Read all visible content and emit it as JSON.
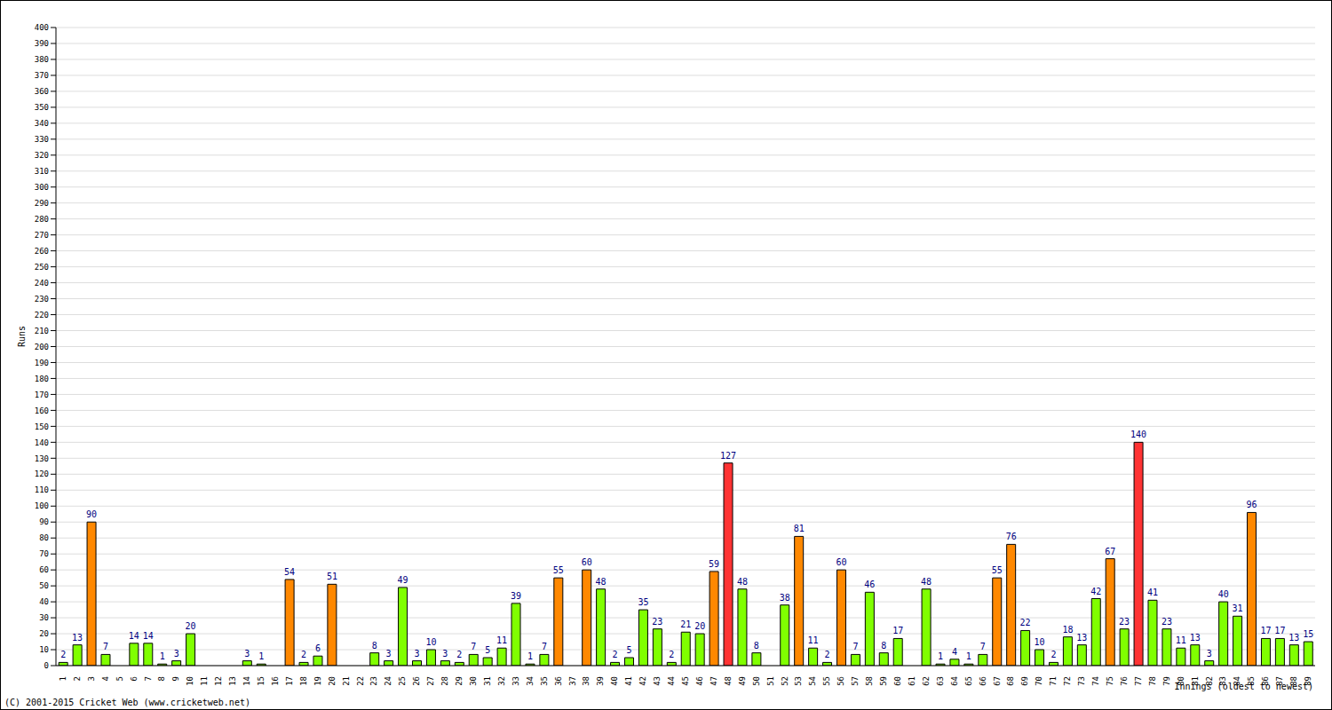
{
  "chart_data": {
    "type": "bar",
    "y_label": "Runs",
    "x_label": "Innings (oldest to newest)",
    "annotations": [
      "(C) 2001-2015 Cricket Web (www.cricketweb.net)"
    ],
    "categories": [
      "1",
      "2",
      "3",
      "4",
      "5",
      "6",
      "7",
      "8",
      "9",
      "10",
      "11",
      "12",
      "13",
      "14",
      "15",
      "16",
      "17",
      "18",
      "19",
      "20",
      "21",
      "22",
      "23",
      "24",
      "25",
      "26",
      "27",
      "28",
      "29",
      "30",
      "31",
      "32",
      "33",
      "34",
      "35",
      "36",
      "37",
      "38",
      "39",
      "40",
      "41",
      "42",
      "43",
      "44",
      "45",
      "46",
      "47",
      "48",
      "49",
      "50",
      "51",
      "52",
      "53",
      "54",
      "55",
      "56",
      "57",
      "58",
      "59",
      "60",
      "61",
      "62",
      "63",
      "64",
      "65",
      "66",
      "67",
      "68",
      "69",
      "70",
      "71",
      "72",
      "73",
      "74",
      "75",
      "76",
      "77",
      "78",
      "79",
      "80",
      "81",
      "82",
      "83",
      "84",
      "85",
      "86",
      "87",
      "88",
      "89"
    ],
    "values": [
      2,
      13,
      90,
      7,
      0,
      14,
      14,
      1,
      3,
      20,
      0,
      0,
      0,
      3,
      1,
      0,
      54,
      2,
      6,
      51,
      0,
      0,
      8,
      3,
      49,
      3,
      10,
      3,
      2,
      7,
      5,
      11,
      39,
      1,
      7,
      55,
      0,
      60,
      48,
      2,
      5,
      35,
      23,
      2,
      21,
      20,
      59,
      127,
      48,
      8,
      0,
      38,
      81,
      11,
      2,
      60,
      7,
      46,
      8,
      17,
      0,
      48,
      1,
      4,
      1,
      7,
      55,
      76,
      22,
      10,
      2,
      18,
      13,
      42,
      67,
      23,
      140,
      41,
      23,
      11,
      13,
      3,
      40,
      31,
      96,
      17,
      17,
      13,
      15
    ],
    "colors": [
      "#80ff00",
      "#80ff00",
      "#ff8800",
      "#80ff00",
      "#80ff00",
      "#80ff00",
      "#80ff00",
      "#80ff00",
      "#80ff00",
      "#80ff00",
      "#80ff00",
      "#80ff00",
      "#80ff00",
      "#80ff00",
      "#80ff00",
      "#80ff00",
      "#ff8800",
      "#80ff00",
      "#80ff00",
      "#ff8800",
      "#80ff00",
      "#80ff00",
      "#80ff00",
      "#80ff00",
      "#80ff00",
      "#80ff00",
      "#80ff00",
      "#80ff00",
      "#80ff00",
      "#80ff00",
      "#80ff00",
      "#80ff00",
      "#80ff00",
      "#80ff00",
      "#80ff00",
      "#ff8800",
      "#80ff00",
      "#ff8800",
      "#80ff00",
      "#80ff00",
      "#80ff00",
      "#80ff00",
      "#80ff00",
      "#80ff00",
      "#80ff00",
      "#80ff00",
      "#ff8800",
      "#ff3333",
      "#80ff00",
      "#80ff00",
      "#80ff00",
      "#80ff00",
      "#ff8800",
      "#80ff00",
      "#80ff00",
      "#ff8800",
      "#80ff00",
      "#80ff00",
      "#80ff00",
      "#80ff00",
      "#80ff00",
      "#80ff00",
      "#80ff00",
      "#80ff00",
      "#80ff00",
      "#80ff00",
      "#ff8800",
      "#ff8800",
      "#80ff00",
      "#80ff00",
      "#80ff00",
      "#80ff00",
      "#80ff00",
      "#80ff00",
      "#ff8800",
      "#80ff00",
      "#ff3333",
      "#80ff00",
      "#80ff00",
      "#80ff00",
      "#80ff00",
      "#80ff00",
      "#80ff00",
      "#80ff00",
      "#ff8800",
      "#80ff00",
      "#80ff00",
      "#80ff00",
      "#80ff00"
    ],
    "ylim": [
      0,
      400
    ],
    "yticks": [
      0,
      10,
      20,
      30,
      40,
      50,
      60,
      70,
      80,
      90,
      100,
      110,
      120,
      130,
      140,
      150,
      160,
      170,
      180,
      190,
      200,
      210,
      220,
      230,
      240,
      250,
      260,
      270,
      280,
      290,
      300,
      310,
      320,
      330,
      340,
      350,
      360,
      370,
      380,
      390,
      400
    ],
    "grid": true,
    "data_labels": true
  }
}
